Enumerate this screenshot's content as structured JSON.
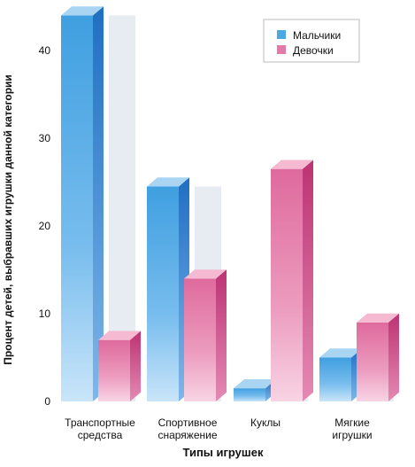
{
  "chart_data": {
    "type": "bar",
    "title": "",
    "xlabel": "Типы игрушек",
    "ylabel": "Процент детей, выбравших игрушки данной категории",
    "categories": [
      [
        "Транспортные",
        "средства"
      ],
      [
        "Спортивное",
        "снаряжение"
      ],
      [
        "Куклы"
      ],
      [
        "Мягкие",
        "игрушки"
      ]
    ],
    "series": [
      {
        "name": "Мальчики",
        "values": [
          44,
          24.5,
          1.5,
          5
        ]
      },
      {
        "name": "Девочки",
        "values": [
          7,
          14,
          26.5,
          9
        ]
      }
    ],
    "ylim": [
      0,
      44
    ],
    "yticks": [
      0,
      10,
      20,
      30,
      40
    ],
    "legend": "top-right",
    "grid": false,
    "colors": {
      "boys_front": "#4aa8e3",
      "boys_side": "#2a7ccc",
      "boys_top": "#a9d5f3",
      "girls_front": "#e57aa8",
      "girls_side": "#c73f7c",
      "girls_top": "#f5b9d2",
      "shadow": "#e7ecf3"
    }
  }
}
